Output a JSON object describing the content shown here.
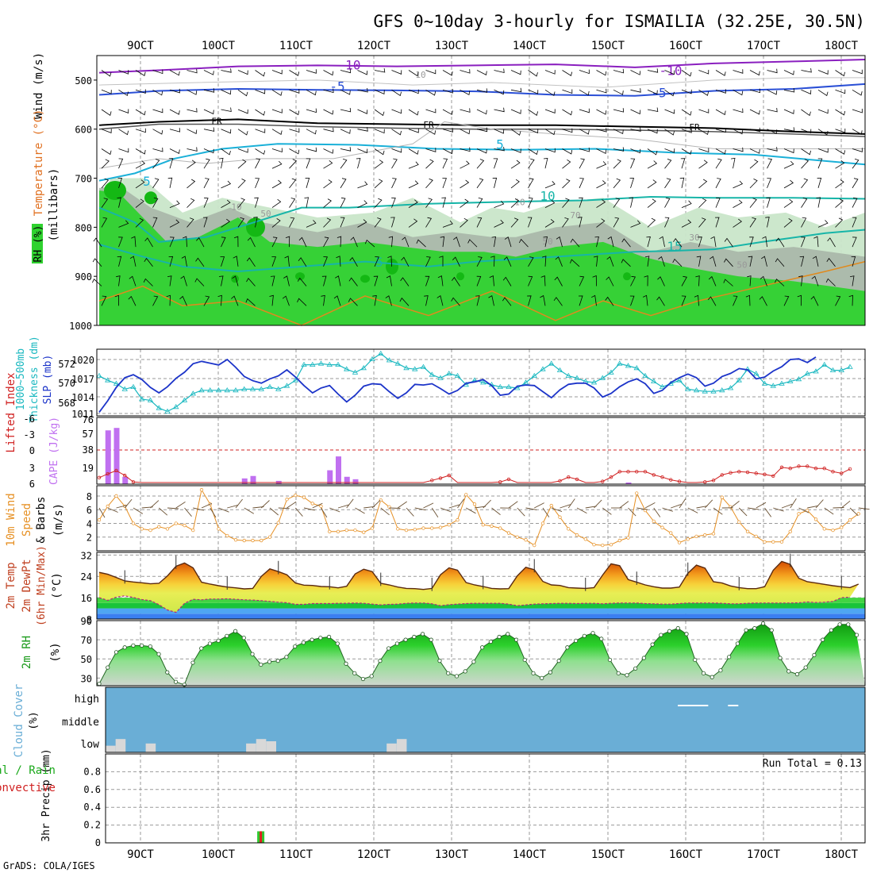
{
  "title": "GFS 0~10day 3-hourly for ISMAILIA (32.25E, 30.5N)",
  "footer": "GrADS: COLA/IGES",
  "colors": {
    "rh_green": "#2fd22f",
    "rh_light": "#c9e6c9",
    "rh_grey": "#aab8aa",
    "wind_barb": "#000000",
    "temp_purple": "#8a1fbf",
    "temp_blue": "#2a4fd6",
    "temp_cyan": "#1ab0d8",
    "temp_teal": "#17b5a8",
    "temp_orange": "#e08a1e",
    "slp": "#1c34c9",
    "thickness": "#1ab8c0",
    "cape": "#c070f0",
    "li": "#d02020",
    "wind10": "#e69024",
    "cloud_bg": "#6aaed6",
    "cloud_cell": "#d8d8d8",
    "precip_total": "#2fc82f",
    "precip_conv": "#e02020",
    "grid": "#9a9a9a"
  },
  "x_labels": [
    "9OCT",
    "10OCT",
    "11OCT",
    "12OCT",
    "13OCT",
    "14OCT",
    "15OCT",
    "16OCT",
    "17OCT",
    "18OCT"
  ],
  "panels": {
    "upper": {
      "ylabel_wind": "Wind (m/s)",
      "ylabel_temp": "Temperature (°C)",
      "ylabel_rh": "RH (%)",
      "ylabel_mb": "(millibars)",
      "ticks": [
        "500",
        "600",
        "700",
        "800",
        "900",
        "1000"
      ],
      "contour_labels": [
        "-10",
        "-10",
        "-5",
        "-5",
        "FR",
        "FR",
        "FR",
        "5",
        "5",
        "10",
        "15",
        "5",
        "10",
        "10",
        "50",
        "50",
        "30",
        "50",
        "70",
        "10"
      ]
    },
    "slp_thick": {
      "ylabel_a": "1000~500mb",
      "ylabel_b": "Thickness (dm)",
      "ylabel_c": "SLP (mb)",
      "left_ticks": [
        "572",
        "570",
        "568"
      ],
      "right_ticks": [
        "1020",
        "1017",
        "1014",
        "1011"
      ]
    },
    "cape_li": {
      "ylabel_li": "Lifted Index",
      "ylabel_cape": "CAPE (J/kg)",
      "left_ticks": [
        "-6",
        "-3",
        "0",
        "3",
        "6"
      ],
      "right_ticks": [
        "76",
        "57",
        "38",
        "19"
      ]
    },
    "wind10": {
      "ylabel_a": "10m Wind",
      "ylabel_b": "Speed",
      "ylabel_c": "& Barbs",
      "ylabel_units": "(m/s)",
      "ticks": [
        "8",
        "6",
        "4",
        "2"
      ]
    },
    "temp2m": {
      "ylabel_a": "2m Temp",
      "ylabel_b": "2m DewPt",
      "ylabel_c": "(6hr Min/Max)",
      "ylabel_units": "(°C)",
      "ticks": [
        "32",
        "24",
        "16",
        "8"
      ]
    },
    "rh2m": {
      "ylabel": "2m RH",
      "ylabel_units": "(%)",
      "ticks": [
        "90",
        "70",
        "50",
        "30"
      ]
    },
    "cloud": {
      "ylabel": "Cloud Cover",
      "ylabel_units": "(%)",
      "ticks": [
        "high",
        "middle",
        "low"
      ]
    },
    "precip": {
      "ylabel_a": "3hr Precip (mm)",
      "ylabel_b": "Total / Rain",
      "ylabel_c": "Convective",
      "ticks": [
        "0.8",
        "0.6",
        "0.4",
        "0.2",
        "0"
      ],
      "run_total": "Run Total = 0.13"
    }
  },
  "chart_data": [
    {
      "type": "line",
      "panel": "slp_thick",
      "x_start": "2012-10-08T12:00",
      "step_hours": 3,
      "series": [
        {
          "name": "SLP (mb)",
          "axis": "right",
          "ylim": [
            1011,
            1022
          ],
          "values": [
            1011.6,
            1013.5,
            1015.7,
            1017.3,
            1017.8,
            1017.0,
            1015.7,
            1014.8,
            1015.8,
            1017.2,
            1018.2,
            1019.6,
            1020.0,
            1019.7,
            1019.4,
            1020.3,
            1019.0,
            1017.5,
            1016.8,
            1016.4,
            1017.1,
            1017.6,
            1018.6,
            1017.4,
            1016.0,
            1014.8,
            1015.6,
            1016.0,
            1014.6,
            1013.3,
            1014.4,
            1015.9,
            1016.3,
            1016.2,
            1015.0,
            1013.9,
            1014.8,
            1016.2,
            1016.1,
            1016.3,
            1015.5,
            1014.6,
            1015.2,
            1016.4,
            1016.6,
            1017.0,
            1016.0,
            1014.4,
            1014.6,
            1015.9,
            1016.1,
            1016.0,
            1015.0,
            1014.0,
            1015.3,
            1016.2,
            1016.4,
            1016.4,
            1015.6,
            1014.1,
            1014.7,
            1015.8,
            1016.6,
            1017.1,
            1016.3,
            1014.7,
            1015.2,
            1016.5,
            1017.3,
            1017.9,
            1017.3,
            1015.9,
            1016.4,
            1017.5,
            1018.0,
            1018.8,
            1018.6,
            1017.1,
            1017.4,
            1018.4,
            1019.1,
            1020.3,
            1020.4,
            1019.8,
            1020.7
          ]
        },
        {
          "name": "1000~500mb Thickness (dm)",
          "axis": "left",
          "ylim": [
            567.2,
            573.2
          ],
          "values": [
            570.8,
            570.4,
            570.1,
            569.6,
            569.8,
            568.7,
            568.6,
            567.9,
            567.6,
            568.0,
            568.6,
            569.2,
            569.5,
            569.5,
            569.5,
            569.5,
            569.5,
            569.6,
            569.6,
            569.6,
            569.8,
            569.6,
            569.9,
            570.4,
            571.8,
            571.8,
            571.9,
            571.8,
            571.8,
            571.4,
            571.1,
            571.5,
            572.3,
            572.8,
            572.2,
            571.9,
            571.5,
            571.4,
            571.6,
            570.9,
            570.6,
            571.0,
            570.8,
            570.0,
            570.4,
            570.2,
            570.0,
            569.8,
            569.8,
            569.7,
            570.2,
            570.8,
            571.4,
            571.9,
            571.3,
            570.8,
            570.6,
            570.3,
            570.2,
            570.6,
            571.1,
            571.9,
            571.7,
            571.5,
            570.8,
            570.3,
            569.8,
            570.1,
            570.4,
            569.6,
            569.5,
            569.4,
            569.4,
            569.5,
            569.7,
            570.4,
            571.4,
            571.0,
            570.1,
            569.9,
            570.1,
            570.3,
            570.5,
            571.0,
            571.2,
            571.8,
            571.3,
            571.3,
            571.6
          ]
        }
      ]
    },
    {
      "type": "bar",
      "panel": "cape_li",
      "series": [
        {
          "name": "CAPE (J/kg)",
          "axis": "right",
          "ylim": [
            0,
            76
          ],
          "x_index": [
            1,
            2,
            3,
            17,
            18,
            21,
            27,
            28,
            29,
            30,
            62
          ],
          "values": [
            66,
            69,
            9,
            7,
            10,
            4,
            17,
            34,
            9,
            6,
            2
          ]
        },
        {
          "name": "Lifted Index",
          "axis": "left",
          "type": "line",
          "ylim": [
            6,
            -6
          ],
          "values": [
            5.1,
            4.4,
            3.8,
            4.7,
            5.9,
            6.0,
            6.0,
            6.0,
            6.0,
            6.0,
            6.0,
            6.0,
            6.0,
            6.0,
            6.0,
            6.0,
            6.0,
            6.0,
            6.0,
            6.0,
            6.0,
            6.0,
            6.0,
            6.0,
            6.0,
            6.0,
            6.0,
            6.0,
            6.0,
            6.0,
            6.0,
            6.0,
            6.0,
            6.0,
            6.0,
            6.0,
            6.0,
            6.0,
            6.0,
            5.6,
            5.2,
            4.7,
            6.0,
            6.0,
            6.0,
            6.0,
            6.0,
            5.9,
            5.4,
            6.0,
            6.0,
            6.0,
            6.0,
            6.0,
            5.7,
            5.0,
            5.4,
            6.0,
            6.0,
            5.8,
            5.0,
            4.0,
            4.0,
            4.0,
            4.0,
            4.6,
            5.0,
            5.5,
            5.8,
            6.0,
            6.0,
            5.9,
            5.6,
            4.6,
            4.2,
            4.0,
            4.1,
            4.3,
            4.5,
            4.8,
            3.2,
            3.4,
            3.0,
            3.0,
            3.4,
            3.4,
            4.0,
            4.3,
            3.5
          ]
        }
      ]
    },
    {
      "type": "line",
      "panel": "wind10",
      "ylim": [
        0,
        9.5
      ],
      "series": [
        {
          "name": "10m Wind Speed (m/s)",
          "values": [
            4.5,
            6.5,
            8.0,
            6.5,
            4.0,
            3.2,
            3.0,
            3.5,
            3.2,
            4.0,
            3.7,
            3.0,
            8.9,
            6.8,
            3.2,
            2.2,
            1.6,
            1.5,
            1.5,
            1.5,
            2.0,
            4.1,
            7.5,
            8.1,
            7.8,
            6.9,
            6.5,
            2.8,
            2.8,
            3.0,
            3.0,
            2.7,
            3.3,
            7.4,
            6.4,
            3.2,
            3.0,
            3.1,
            3.3,
            3.3,
            3.4,
            3.8,
            4.5,
            8.2,
            6.8,
            3.8,
            3.6,
            3.3,
            2.6,
            2.0,
            1.6,
            0.8,
            4.0,
            6.6,
            4.9,
            3.2,
            2.3,
            1.7,
            0.9,
            0.8,
            0.9,
            1.5,
            1.9,
            8.4,
            5.9,
            4.3,
            3.4,
            2.6,
            1.2,
            1.7,
            2.1,
            2.3,
            2.5,
            7.8,
            6.4,
            4.2,
            2.8,
            2.1,
            1.3,
            1.3,
            1.3,
            2.8,
            5.4,
            5.9,
            4.6,
            3.2,
            3.0,
            3.4,
            4.5,
            5.4,
            6.0,
            6.9,
            7.2,
            5.9,
            5.5,
            3.4,
            3.6,
            5.7,
            5.2,
            4.7,
            2.9,
            2.8,
            4.0,
            4.3
          ]
        }
      ]
    },
    {
      "type": "line",
      "panel": "temp2m",
      "ylim": [
        8,
        33
      ],
      "series": [
        {
          "name": "2m Temp (°C)",
          "values": [
            25.5,
            24.8,
            23.6,
            22.3,
            21.9,
            21.6,
            21.2,
            21.4,
            24.2,
            27.8,
            29.0,
            27.2,
            21.8,
            21.1,
            20.5,
            20.0,
            19.7,
            19.3,
            19.5,
            24.0,
            26.8,
            25.8,
            24.6,
            21.5,
            20.7,
            20.6,
            20.2,
            20.1,
            19.7,
            20.3,
            24.9,
            26.7,
            25.8,
            21.4,
            20.8,
            20.0,
            19.5,
            19.4,
            19.1,
            19.5,
            24.6,
            27.2,
            26.3,
            21.7,
            20.8,
            20.2,
            19.5,
            19.3,
            19.4,
            24.2,
            27.4,
            26.5,
            22.1,
            20.8,
            20.6,
            19.8,
            19.6,
            19.5,
            19.8,
            24.5,
            28.7,
            28.0,
            22.8,
            21.8,
            20.8,
            20.1,
            19.6,
            19.6,
            20.0,
            25.2,
            28.2,
            27.1,
            22.0,
            21.5,
            20.4,
            19.8,
            19.4,
            19.4,
            20.1,
            26.3,
            29.6,
            28.5,
            23.3,
            22.0,
            21.5,
            21.0,
            20.5,
            20.1,
            19.8,
            21.1,
            28.2,
            28.5,
            25.0
          ]
        },
        {
          "name": "2m DewPt (°C)",
          "values": [
            16.0,
            15.0,
            16.2,
            16.7,
            16.1,
            15.3,
            14.9,
            13.4,
            11.4,
            10.5,
            13.9,
            15.4,
            15.2,
            15.5,
            15.5,
            15.6,
            15.4,
            15.2,
            15.1,
            14.9,
            14.6,
            14.3,
            14.1,
            13.5,
            13.5,
            13.8,
            13.8,
            13.8,
            13.9,
            13.9,
            14.0,
            13.9,
            13.6,
            13.3,
            13.5,
            13.6,
            13.9,
            14.0,
            14.0,
            13.7,
            13.0,
            13.4,
            13.6,
            13.8,
            13.9,
            13.9,
            13.9,
            13.9,
            13.6,
            13.0,
            13.3,
            13.6,
            13.7,
            13.8,
            13.9,
            13.9,
            13.8,
            13.9,
            13.9,
            13.7,
            13.9,
            14.0,
            14.0,
            14.0,
            13.8,
            13.7,
            13.6,
            13.6,
            13.8,
            14.0,
            14.0,
            14.0,
            14.0,
            13.9,
            13.7,
            13.7,
            13.9,
            14.0,
            14.0,
            14.0,
            14.0,
            14.0,
            14.1,
            14.4,
            14.2,
            14.3,
            14.6,
            16.0,
            16.2
          ]
        }
      ]
    },
    {
      "type": "area",
      "panel": "rh2m",
      "ylim": [
        22,
        90
      ],
      "series": [
        {
          "name": "2m RH (%)",
          "values": [
            24,
            41,
            57,
            62,
            64,
            64,
            63,
            55,
            36,
            26,
            23,
            46,
            61,
            66,
            69,
            74,
            79,
            72,
            55,
            44,
            47,
            48,
            52,
            63,
            67,
            70,
            72,
            73,
            66,
            45,
            35,
            29,
            32,
            48,
            61,
            66,
            70,
            73,
            76,
            70,
            48,
            35,
            32,
            37,
            47,
            62,
            68,
            73,
            76,
            70,
            49,
            35,
            30,
            36,
            48,
            62,
            69,
            74,
            77,
            71,
            49,
            35,
            33,
            40,
            51,
            65,
            75,
            79,
            82,
            76,
            49,
            35,
            31,
            38,
            52,
            66,
            80,
            82,
            87,
            80,
            51,
            37,
            34,
            41,
            54,
            70,
            80,
            86,
            86,
            75,
            54,
            36,
            28,
            40,
            55,
            72,
            80,
            84,
            89,
            66
          ]
        }
      ]
    },
    {
      "type": "heatmap",
      "panel": "cloud",
      "rows": [
        "high",
        "middle",
        "low"
      ],
      "cells": [
        {
          "row": "low",
          "x_index": 0,
          "value": 30
        },
        {
          "row": "low",
          "x_index": 1,
          "value": 60
        },
        {
          "row": "low",
          "x_index": 4,
          "value": 40
        },
        {
          "row": "low",
          "x_index": 14,
          "value": 40
        },
        {
          "row": "low",
          "x_index": 15,
          "value": 60
        },
        {
          "row": "low",
          "x_index": 16,
          "value": 50
        },
        {
          "row": "low",
          "x_index": 28,
          "value": 40
        },
        {
          "row": "low",
          "x_index": 29,
          "value": 60
        },
        {
          "row": "high",
          "x_index": 57,
          "value": 10
        },
        {
          "row": "high",
          "x_index": 58,
          "value": 10
        },
        {
          "row": "high",
          "x_index": 59,
          "value": 10
        },
        {
          "row": "high",
          "x_index": 62,
          "value": 10
        }
      ]
    },
    {
      "type": "bar",
      "panel": "precip",
      "ylim": [
        0,
        1.0
      ],
      "series": [
        {
          "name": "Total / Rain",
          "x_index": [
            14
          ],
          "values": [
            0.13
          ]
        },
        {
          "name": "Convective",
          "x_index": [
            14
          ],
          "values": [
            0.13
          ]
        }
      ]
    }
  ]
}
